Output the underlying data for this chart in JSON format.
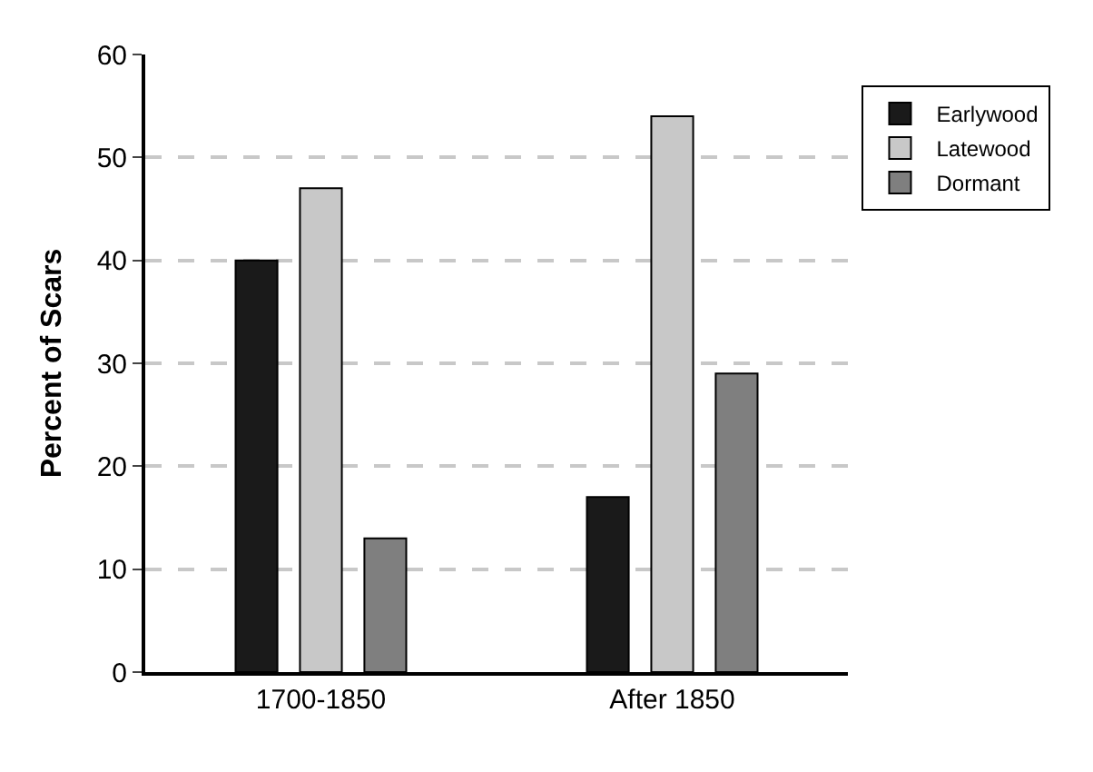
{
  "chart_data": {
    "type": "bar",
    "ylabel": "Percent of Scars",
    "categories": [
      "1700-1850",
      "After 1850"
    ],
    "series": [
      {
        "name": "Earlywood",
        "color": "#1a1a1a",
        "values": [
          40,
          17
        ]
      },
      {
        "name": "Latewood",
        "color": "#c8c8c8",
        "values": [
          47,
          54
        ]
      },
      {
        "name": "Dormant",
        "color": "#7f7f7f",
        "values": [
          13,
          29
        ]
      }
    ],
    "ylim": [
      0,
      60
    ],
    "yticks": [
      0,
      10,
      20,
      30,
      40,
      50,
      60
    ],
    "grid": "y",
    "legend": "top right"
  }
}
